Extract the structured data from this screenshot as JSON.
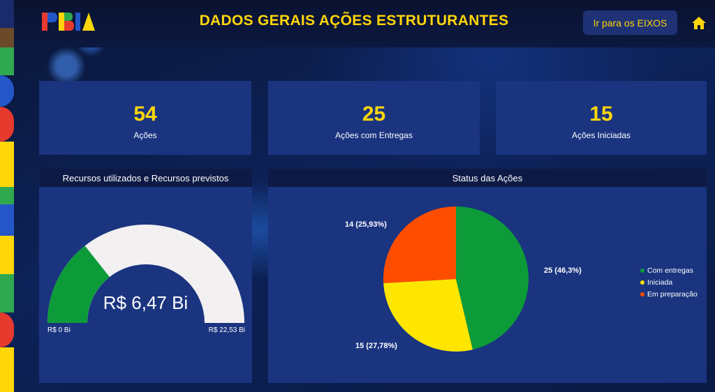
{
  "header": {
    "title": "DADOS GERAIS AÇÕES ESTRUTURANTES",
    "logo_text": "PBIA",
    "eixos_button": "Ir para os EIXOS"
  },
  "icons": {
    "home": "home-icon",
    "logo": "pbia-logo"
  },
  "colors": {
    "accent": "#ffd60a",
    "panel": "#1a3480",
    "green": "#0d9b3a",
    "yellow": "#ffe600",
    "orange": "#ff4d00"
  },
  "kpis": [
    {
      "value": "54",
      "label": "Ações"
    },
    {
      "value": "25",
      "label": "Ações com Entregas"
    },
    {
      "value": "15",
      "label": "Ações Iniciadas"
    }
  ],
  "gauge": {
    "title": "Recursos utilizados e Recursos previstos",
    "value_label": "R$ 6,47 Bi",
    "min_label": "R$ 0 Bi",
    "max_label": "R$ 22,53 Bi",
    "value": 6.47,
    "max": 22.53
  },
  "chart_data": {
    "type": "pie",
    "title": "Status das Ações",
    "slices": [
      {
        "name": "Com entregas",
        "value": 25,
        "label": "25 (46,3%)",
        "color": "#0d9b3a"
      },
      {
        "name": "Iniciada",
        "value": 15,
        "label": "15 (27,78%)",
        "color": "#ffe600"
      },
      {
        "name": "Em preparação",
        "value": 14,
        "label": "14 (25,93%)",
        "color": "#ff4d00"
      }
    ],
    "legend_position": "right"
  }
}
